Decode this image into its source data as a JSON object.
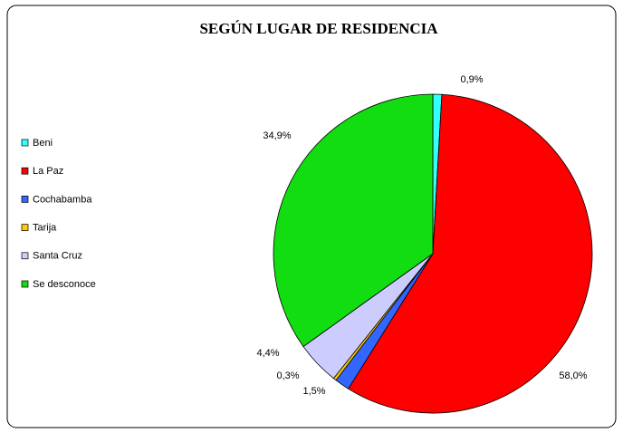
{
  "chart_data": {
    "type": "pie",
    "title": "SEGÚN LUGAR DE RESIDENCIA",
    "categories": [
      "Beni",
      "La Paz",
      "Cochabamba",
      "Tarija",
      "Santa Cruz",
      "Se desconoce"
    ],
    "values": [
      0.9,
      58.0,
      1.5,
      0.3,
      4.4,
      34.9
    ],
    "value_labels": [
      "0,9%",
      "58,0%",
      "1,5%",
      "0,3%",
      "4,4%",
      "34,9%"
    ],
    "colors": [
      "#33ffff",
      "#ff0000",
      "#3366ff",
      "#ffcc00",
      "#ccccff",
      "#11dd11"
    ],
    "legend": "left"
  }
}
